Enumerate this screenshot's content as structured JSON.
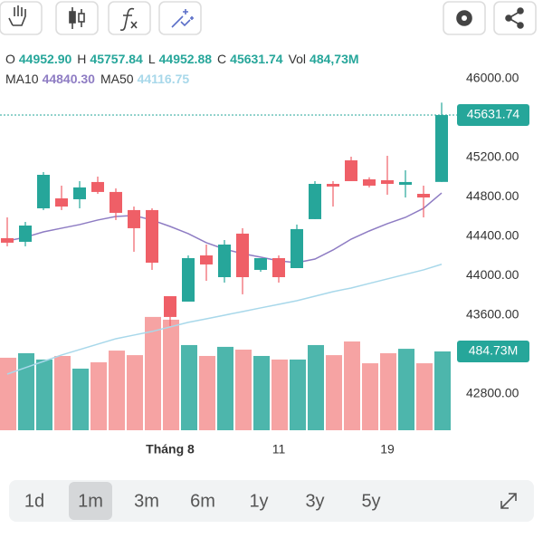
{
  "header": {
    "ohlc": [
      {
        "label": "O",
        "value": "44952.90"
      },
      {
        "label": "H",
        "value": "45757.84"
      },
      {
        "label": "L",
        "value": "44952.88"
      },
      {
        "label": "C",
        "value": "45631.74"
      },
      {
        "label": "Vol",
        "value": "484,73M"
      }
    ],
    "ma": [
      {
        "label": "MA10",
        "value": "44840.30"
      },
      {
        "label": "MA50",
        "value": "44116.75"
      }
    ]
  },
  "chart_data": {
    "type": "candlestick",
    "categories": [
      null,
      null,
      null,
      null,
      null,
      null,
      null,
      null,
      null,
      "Tháng 8",
      null,
      null,
      null,
      null,
      null,
      "11",
      null,
      null,
      null,
      null,
      null,
      "19",
      null,
      null,
      null
    ],
    "open": [
      44382,
      44345,
      44685,
      44786,
      44777,
      44952,
      44851,
      44667,
      44667,
      43793,
      43738,
      44207,
      43986,
      44428,
      44060,
      44179,
      44078,
      44575,
      44933,
      45172,
      44979,
      44970,
      44924,
      44832,
      44952.9
    ],
    "high": [
      44593,
      44547,
      45053,
      44915,
      44961,
      45007,
      44887,
      44703,
      44685,
      43793,
      44207,
      44317,
      44363,
      44483,
      44179,
      44207,
      44520,
      44961,
      44961,
      45209,
      45000,
      45218,
      45071,
      44915,
      45757.84
    ],
    "low": [
      44299,
      44299,
      44667,
      44667,
      44685,
      44832,
      44566,
      44244,
      44060,
      43490,
      43738,
      43949,
      43931,
      43812,
      44041,
      43931,
      44078,
      44575,
      44703,
      44961,
      44897,
      44823,
      44795,
      44593,
      44952.88
    ],
    "close": [
      44336,
      44510,
      45025,
      44703,
      44897,
      44851,
      44639,
      44483,
      44133,
      43582,
      44179,
      44115,
      44317,
      43986,
      44179,
      43986,
      44474,
      44933,
      44906,
      44961,
      44915,
      44933,
      44952,
      44795,
      45631.74
    ],
    "volume": [
      446,
      474,
      435,
      457,
      379,
      418,
      490,
      462,
      697,
      680,
      524,
      457,
      513,
      496,
      457,
      435,
      435,
      524,
      462,
      546,
      412,
      474,
      501,
      412,
      484.73
    ],
    "last_volume_label": "484.73M",
    "series": [
      {
        "name": "MA10",
        "color": "#8e7cc3",
        "values": [
          44354,
          44391,
          44446,
          44483,
          44520,
          44566,
          44602,
          44612,
          44566,
          44501,
          44428,
          44336,
          44271,
          44225,
          44189,
          44152,
          44133,
          44170,
          44262,
          44372,
          44455,
          44529,
          44593,
          44685,
          44840.3
        ]
      },
      {
        "name": "MA50",
        "color": "#a8d8ea",
        "values": [
          43002,
          43067,
          43131,
          43196,
          43251,
          43306,
          43361,
          43398,
          43435,
          43481,
          43527,
          43563,
          43600,
          43637,
          43674,
          43710,
          43747,
          43793,
          43839,
          43876,
          43922,
          43968,
          44014,
          44060,
          44116.75
        ]
      }
    ],
    "up_color": "#26a69a",
    "down_color": "#ef5f67",
    "volume_up_color": "#4db6ac",
    "volume_down_color": "#f6a3a3",
    "ylim": [
      42432,
      46248
    ],
    "yticks": [
      {
        "value": 46000,
        "label": "46000.00"
      },
      {
        "value": 45200,
        "label": "45200.00"
      },
      {
        "value": 44800,
        "label": "44800.00"
      },
      {
        "value": 44400,
        "label": "44400.00"
      },
      {
        "value": 44000,
        "label": "44000.00"
      },
      {
        "value": 43600,
        "label": "43600.00"
      },
      {
        "value": 42800,
        "label": "42800.00"
      }
    ]
  },
  "periods": {
    "options": [
      "1d",
      "1m",
      "3m",
      "6m",
      "1y",
      "3y",
      "5y"
    ],
    "selected": 1
  }
}
